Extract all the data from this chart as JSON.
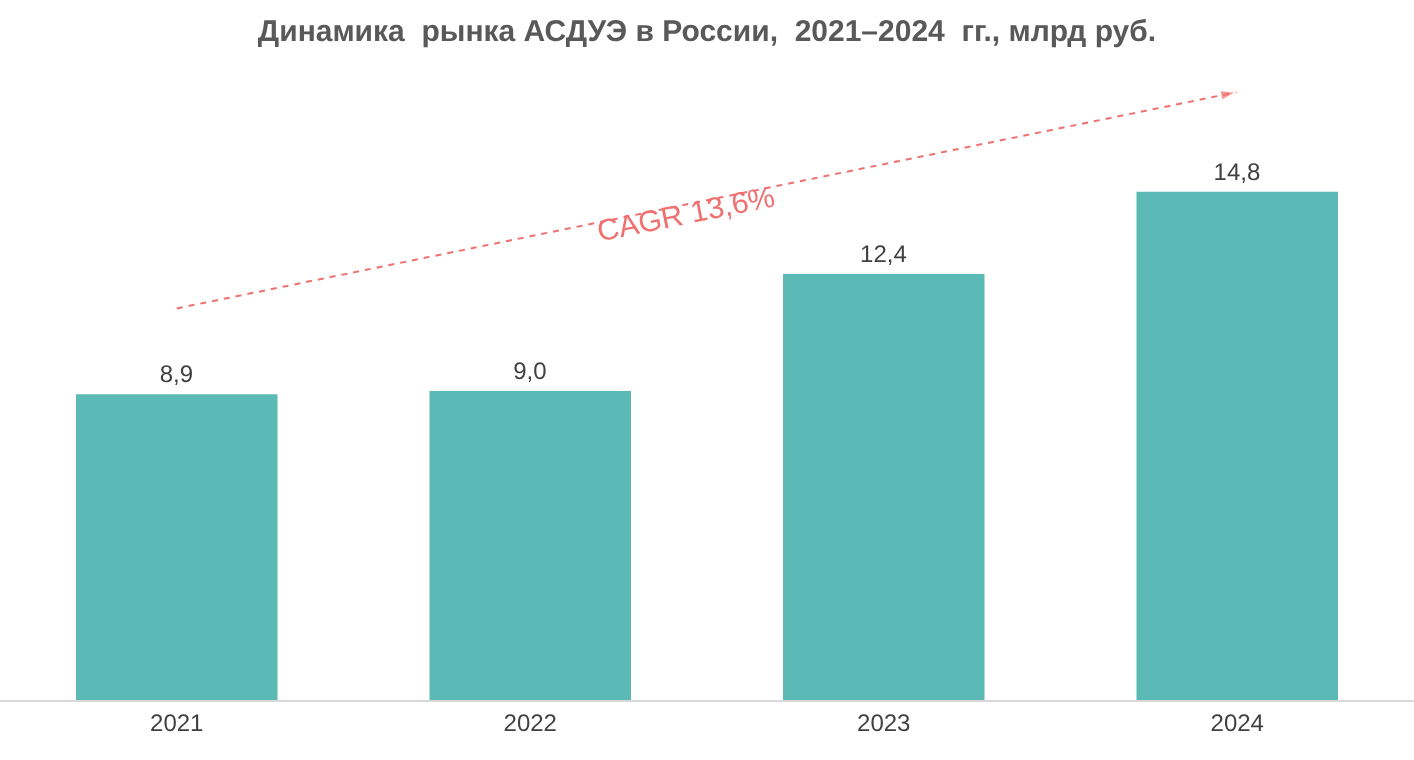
{
  "chart_data": {
    "type": "bar",
    "title": "Динамика  рынка АСДУЭ в России,  2021–2024  гг., млрд руб.",
    "categories": [
      "2021",
      "2022",
      "2023",
      "2024"
    ],
    "series": [
      {
        "color": "#5bbab5",
        "values": [
          8.9,
          9.0,
          12.4,
          14.8
        ],
        "value_labels": [
          "8,9",
          "9,0",
          "12,4",
          "14,8"
        ]
      },
      {
        "type": "line",
        "color": "#f07070",
        "values": [
          11.4,
          13.5,
          15.6,
          17.7
        ],
        "line_style": "dotted"
      }
    ],
    "annotations": [
      "CAGR 13,6%"
    ]
  }
}
